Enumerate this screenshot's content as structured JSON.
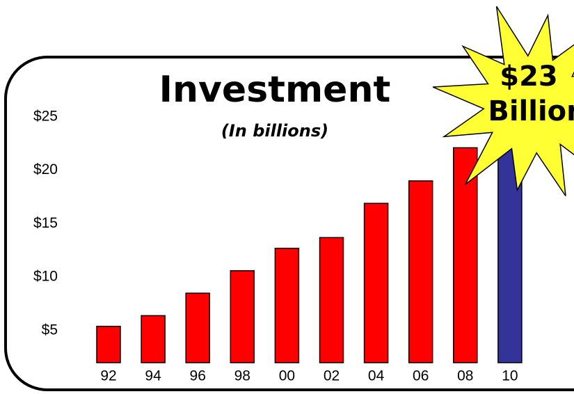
{
  "chart_data": {
    "type": "bar",
    "title": "Investment",
    "subtitle": "(In billions)",
    "categories": [
      "92",
      "94",
      "96",
      "98",
      "00",
      "02",
      "04",
      "06",
      "08",
      "10"
    ],
    "values": [
      5.4,
      6.4,
      8.5,
      10.6,
      12.7,
      13.7,
      16.9,
      19.0,
      22.1,
      23
    ],
    "colors": [
      "#ff0000",
      "#ff0000",
      "#ff0000",
      "#ff0000",
      "#ff0000",
      "#ff0000",
      "#ff0000",
      "#ff0000",
      "#ff0000",
      "#333399"
    ],
    "ylim": [
      2,
      27
    ],
    "yticks": [
      {
        "value": 5,
        "label": "$5"
      },
      {
        "value": 10,
        "label": "$10"
      },
      {
        "value": 15,
        "label": "$15"
      },
      {
        "value": 20,
        "label": "$20"
      },
      {
        "value": 25,
        "label": "$25"
      }
    ],
    "grid": false,
    "annotation": [
      "$23",
      "Billion"
    ]
  }
}
